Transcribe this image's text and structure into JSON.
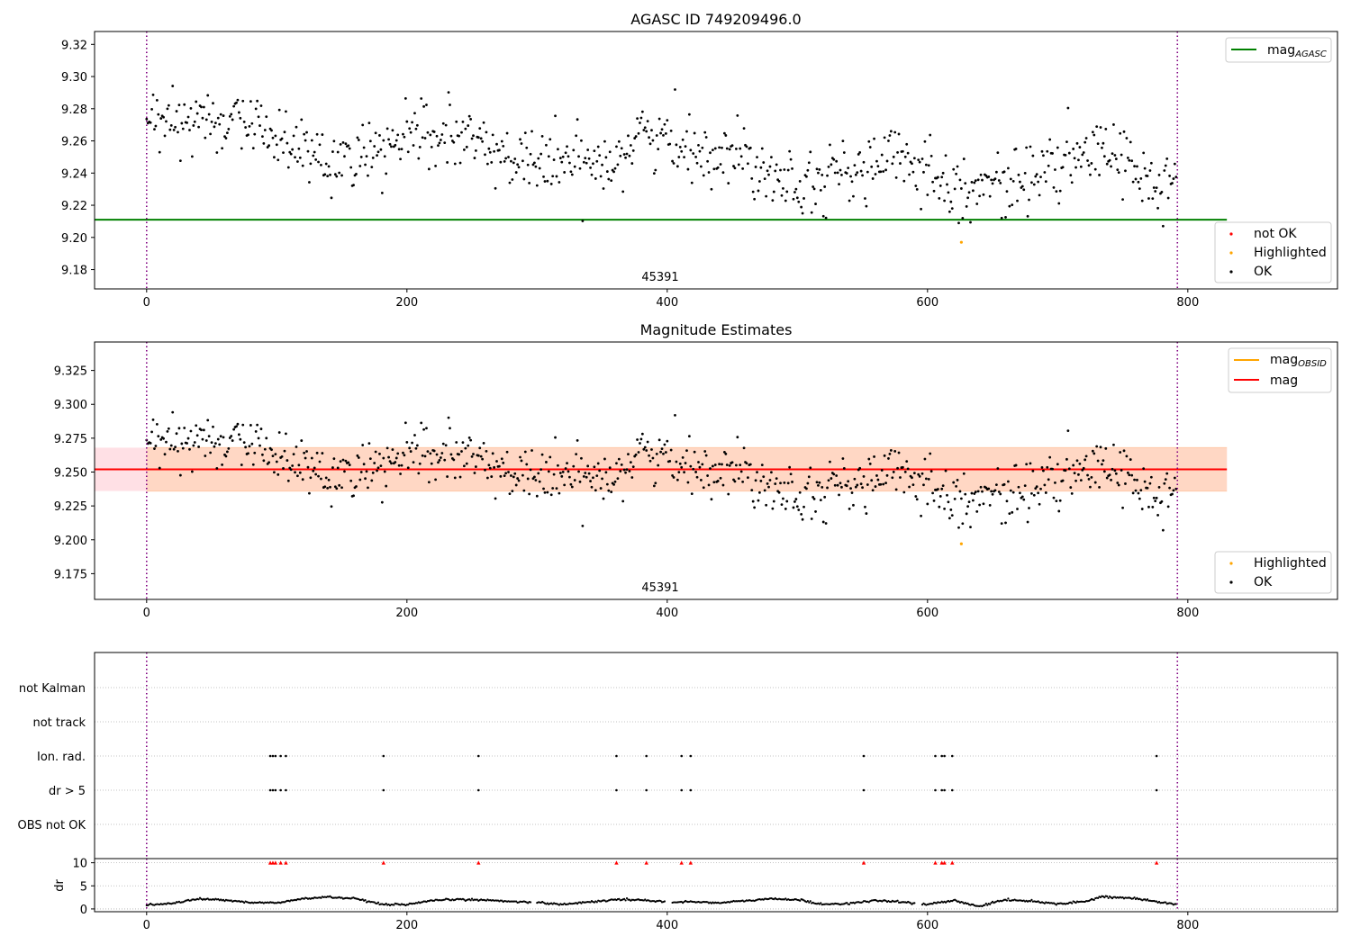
{
  "colors": {
    "ok": "#000000",
    "not_ok": "#ff0000",
    "highlighted": "#ffa500",
    "mag_agasc": "#008000",
    "mag_obsid": "#ffa500",
    "mag": "#ff0000",
    "band_inner": "#ffd7c4",
    "band_outer": "#ffe0e5",
    "vline": "#800080",
    "grid": "#b0b0b0"
  },
  "observation_label": "45391",
  "chart_data": [
    {
      "type": "scatter",
      "title": "AGASC ID 749209496.0",
      "xlabel": "",
      "ylabel": "",
      "xlim": [
        -40,
        915
      ],
      "ylim": [
        9.168,
        9.328
      ],
      "xticks": [
        0,
        200,
        400,
        600,
        800
      ],
      "yticks": [
        9.18,
        9.2,
        9.22,
        9.24,
        9.26,
        9.28,
        9.3,
        9.32
      ],
      "ytick_labels": [
        "9.18",
        "9.20",
        "9.22",
        "9.24",
        "9.26",
        "9.28",
        "9.30",
        "9.32"
      ],
      "hlines": [
        {
          "name": "mag_AGASC",
          "y": 9.211,
          "x": [
            -40,
            830
          ],
          "color": "#008000"
        }
      ],
      "vlines": [
        0,
        792
      ],
      "annotation": {
        "text": "45391",
        "x": 396,
        "y": 9.176
      },
      "legends": [
        {
          "placement": "upper right",
          "entries": [
            {
              "label": "mag",
              "sub": "AGASC",
              "kind": "line",
              "color": "#008000"
            }
          ]
        },
        {
          "placement": "lower right",
          "entries": [
            {
              "label": "not OK",
              "kind": "dot",
              "color": "#ff0000"
            },
            {
              "label": "Highlighted",
              "kind": "dot",
              "color": "#ffa500"
            },
            {
              "label": "OK",
              "kind": "dot",
              "color": "#000000"
            }
          ]
        }
      ],
      "series": [
        {
          "name": "OK",
          "color": "#000000",
          "points": "generated from trend below",
          "trend": [
            [
              0,
              9.268
            ],
            [
              40,
              9.274
            ],
            [
              80,
              9.27
            ],
            [
              120,
              9.255
            ],
            [
              160,
              9.245
            ],
            [
              200,
              9.262
            ],
            [
              240,
              9.262
            ],
            [
              280,
              9.25
            ],
            [
              320,
              9.245
            ],
            [
              360,
              9.25
            ],
            [
              380,
              9.265
            ],
            [
              420,
              9.255
            ],
            [
              460,
              9.25
            ],
            [
              500,
              9.235
            ],
            [
              540,
              9.24
            ],
            [
              580,
              9.25
            ],
            [
              620,
              9.235
            ],
            [
              640,
              9.23
            ],
            [
              680,
              9.238
            ],
            [
              720,
              9.25
            ],
            [
              750,
              9.255
            ],
            [
              770,
              9.232
            ],
            [
              790,
              9.228
            ]
          ],
          "scatter_sd": 0.01
        },
        {
          "name": "Highlighted",
          "color": "#ffa500",
          "points": [
            [
              626,
              9.197
            ]
          ]
        }
      ]
    },
    {
      "type": "scatter",
      "title": "Magnitude Estimates",
      "xlabel": "",
      "ylabel": "",
      "xlim": [
        -40,
        915
      ],
      "ylim": [
        9.156,
        9.346
      ],
      "xticks": [
        0,
        200,
        400,
        600,
        800
      ],
      "yticks": [
        9.175,
        9.2,
        9.225,
        9.25,
        9.275,
        9.3,
        9.325
      ],
      "ytick_labels": [
        "9.175",
        "9.200",
        "9.225",
        "9.250",
        "9.275",
        "9.300",
        "9.325"
      ],
      "hlines": [
        {
          "name": "mag",
          "y": 9.252,
          "x": [
            -40,
            830
          ],
          "color": "#ff0000"
        }
      ],
      "bands": [
        {
          "name": "band_outer",
          "y": [
            9.236,
            9.268
          ],
          "x": [
            -40,
            830
          ],
          "color": "#ffe0e5"
        },
        {
          "name": "band_inner",
          "y": [
            9.236,
            9.268
          ],
          "x": [
            0,
            830
          ],
          "color": "#ffd7c4"
        }
      ],
      "vlines": [
        0,
        792
      ],
      "annotation": {
        "text": "45391",
        "x": 396,
        "y": 9.164
      },
      "legends": [
        {
          "placement": "upper right",
          "entries": [
            {
              "label": "mag",
              "sub": "OBSID",
              "kind": "line",
              "color": "#ffa500"
            },
            {
              "label": "mag",
              "kind": "line",
              "color": "#ff0000"
            }
          ]
        },
        {
          "placement": "lower right",
          "entries": [
            {
              "label": "Highlighted",
              "kind": "dot",
              "color": "#ffa500"
            },
            {
              "label": "OK",
              "kind": "dot",
              "color": "#000000"
            }
          ]
        }
      ],
      "series": [
        {
          "name": "OK",
          "color": "#000000",
          "points": "same as panel 1"
        },
        {
          "name": "Highlighted",
          "color": "#ffa500",
          "points": [
            [
              626,
              9.197
            ]
          ]
        }
      ]
    },
    {
      "type": "scatter",
      "title": "",
      "xlim": [
        -40,
        915
      ],
      "categories": [
        "not Kalman",
        "not track",
        "Ion. rad.",
        "dr > 5",
        "OBS not OK"
      ],
      "flags": {
        "Ion. rad.": [
          95,
          97,
          99,
          103,
          107,
          182,
          255,
          361,
          384,
          411,
          418,
          551,
          606,
          611,
          613,
          619,
          776
        ],
        "dr > 5": [
          95,
          97,
          99,
          103,
          107,
          182,
          255,
          361,
          384,
          411,
          418,
          551,
          606,
          611,
          613,
          619,
          776
        ]
      },
      "vlines": [
        0,
        792
      ],
      "grid": true
    },
    {
      "type": "scatter",
      "title": "",
      "xlabel": "",
      "ylabel": "dr",
      "xlim": [
        -40,
        915
      ],
      "ylim": [
        -0.6,
        10.9
      ],
      "xticks": [
        0,
        200,
        400,
        600,
        800
      ],
      "yticks": [
        0,
        5,
        10
      ],
      "ytick_labels": [
        "0",
        "5",
        "10"
      ],
      "vlines": [
        0,
        792
      ],
      "grid": true,
      "dr_trend": [
        [
          0,
          0.9
        ],
        [
          20,
          1.2
        ],
        [
          40,
          2.2
        ],
        [
          60,
          1.9
        ],
        [
          80,
          1.4
        ],
        [
          100,
          1.3
        ],
        [
          120,
          2.2
        ],
        [
          140,
          2.6
        ],
        [
          160,
          2.2
        ],
        [
          180,
          1.0
        ],
        [
          200,
          0.9
        ],
        [
          220,
          1.8
        ],
        [
          240,
          2.1
        ],
        [
          260,
          1.9
        ],
        [
          300,
          1.4
        ],
        [
          320,
          1.0
        ],
        [
          340,
          1.5
        ],
        [
          360,
          2.0
        ],
        [
          380,
          2.0
        ],
        [
          400,
          1.4
        ],
        [
          420,
          1.6
        ],
        [
          440,
          1.3
        ],
        [
          480,
          2.2
        ],
        [
          500,
          2.0
        ],
        [
          520,
          1.0
        ],
        [
          540,
          1.2
        ],
        [
          560,
          1.8
        ],
        [
          580,
          1.5
        ],
        [
          600,
          1.0
        ],
        [
          620,
          1.8
        ],
        [
          640,
          0.6
        ],
        [
          660,
          2.0
        ],
        [
          680,
          1.7
        ],
        [
          700,
          1.1
        ],
        [
          720,
          1.6
        ],
        [
          735,
          2.7
        ],
        [
          760,
          2.2
        ],
        [
          790,
          1.0
        ]
      ],
      "clipped_markers": {
        "y": 10,
        "color": "#ff0000",
        "x": [
          95,
          97,
          99,
          103,
          107,
          182,
          255,
          361,
          384,
          411,
          418,
          551,
          606,
          611,
          613,
          619,
          776
        ]
      }
    }
  ]
}
